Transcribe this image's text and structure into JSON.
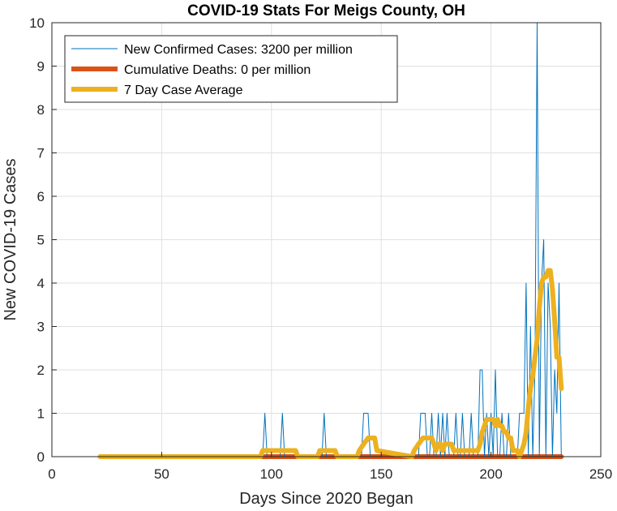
{
  "chart_data": {
    "type": "line",
    "title": "COVID-19 Stats For Meigs County, OH",
    "xlabel": "Days Since 2020 Began",
    "ylabel": "New COVID-19 Cases",
    "xlim": [
      0,
      250
    ],
    "ylim": [
      0,
      10
    ],
    "xticks": [
      0,
      50,
      100,
      150,
      200,
      250
    ],
    "yticks": [
      0,
      1,
      2,
      3,
      4,
      5,
      6,
      7,
      8,
      9,
      10
    ],
    "grid": true,
    "legend_position": "top-left",
    "series": [
      {
        "name": "New Confirmed Cases: 3200 per million",
        "color": "#0072BD",
        "line_style": "thin",
        "x": [
          22,
          96,
          97,
          98,
          99,
          104,
          105,
          106,
          107,
          123,
          124,
          125,
          126,
          141,
          142,
          143,
          144,
          145,
          146,
          165,
          167,
          168,
          169,
          170,
          171,
          172,
          173,
          174,
          175,
          176,
          177,
          178,
          179,
          180,
          181,
          182,
          183,
          184,
          185,
          186,
          187,
          188,
          189,
          190,
          191,
          192,
          193,
          194,
          195,
          196,
          197,
          198,
          199,
          200,
          201,
          202,
          203,
          204,
          205,
          206,
          207,
          208,
          209,
          210,
          211,
          212,
          213,
          214,
          215,
          216,
          217,
          218,
          219,
          220,
          221,
          222,
          223,
          224,
          225,
          226,
          227,
          228,
          229,
          230,
          231,
          232
        ],
        "y": [
          0,
          0,
          1,
          0,
          0,
          0,
          1,
          0,
          0,
          0,
          1,
          0,
          0,
          0,
          1,
          1,
          1,
          0,
          0,
          0,
          0,
          1,
          1,
          1,
          0,
          0,
          1,
          0,
          0,
          1,
          0,
          1,
          0,
          1,
          0,
          0,
          0,
          1,
          0,
          0,
          1,
          0,
          0,
          0,
          1,
          0,
          0,
          0,
          2,
          2,
          0,
          1,
          0,
          1,
          0,
          2,
          0,
          0,
          1,
          0,
          0,
          1,
          0,
          0,
          0,
          0,
          1,
          1,
          1,
          4,
          0,
          3,
          0,
          2,
          10,
          0,
          4,
          5,
          0,
          4,
          3,
          0,
          2,
          1,
          4,
          0
        ]
      },
      {
        "name": "Cumulative Deaths: 0 per million",
        "color": "#D95319",
        "line_style": "thick",
        "x": [
          22,
          232
        ],
        "y": [
          0,
          0
        ]
      },
      {
        "name": "7 Day Case Average",
        "color": "#EDB120",
        "line_style": "thick",
        "x": [
          22,
          95,
          96,
          98,
          100,
          103,
          104,
          106,
          108,
          111,
          112,
          121,
          122,
          124,
          126,
          129,
          130,
          139,
          140,
          142,
          144,
          147,
          148,
          164,
          165,
          167,
          169,
          171,
          172,
          173,
          174,
          175,
          176,
          177,
          178,
          179,
          180,
          181,
          182,
          183,
          184,
          185,
          186,
          187,
          188,
          189,
          190,
          191,
          192,
          193,
          194,
          195,
          196,
          197,
          198,
          199,
          200,
          201,
          202,
          203,
          204,
          205,
          206,
          207,
          208,
          209,
          210,
          211,
          212,
          213,
          214,
          215,
          216,
          217,
          218,
          219,
          220,
          221,
          222,
          223,
          224,
          225,
          226,
          227,
          228,
          229,
          230,
          231,
          232
        ],
        "y": [
          0,
          0,
          0.14,
          0.14,
          0.14,
          0.14,
          0.14,
          0.14,
          0.14,
          0.14,
          0,
          0,
          0.14,
          0.14,
          0.14,
          0.14,
          0,
          0,
          0.14,
          0.29,
          0.43,
          0.43,
          0.14,
          0,
          0.14,
          0.29,
          0.43,
          0.43,
          0.43,
          0.43,
          0.29,
          0.14,
          0.29,
          0.29,
          0.14,
          0.29,
          0.29,
          0.29,
          0.29,
          0.14,
          0.14,
          0.14,
          0.14,
          0.14,
          0.14,
          0.14,
          0.14,
          0.14,
          0.14,
          0.14,
          0.14,
          0.29,
          0.57,
          0.71,
          0.86,
          0.86,
          0.86,
          0.86,
          0.71,
          0.86,
          0.71,
          0.71,
          0.57,
          0.57,
          0.43,
          0.43,
          0.14,
          0.14,
          0.14,
          0,
          0.14,
          0.29,
          0.57,
          1.14,
          1.57,
          1.86,
          2.29,
          2.71,
          3.43,
          4.0,
          4.14,
          4.14,
          4.29,
          4.29,
          3.86,
          3.14,
          2.29,
          2.29,
          1.57
        ]
      }
    ]
  }
}
